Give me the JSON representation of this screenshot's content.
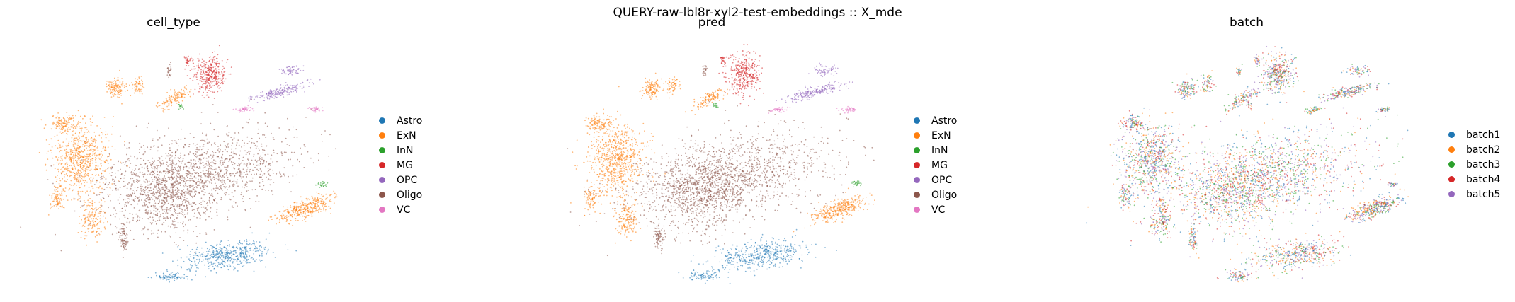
{
  "figure": {
    "suptitle": "QUERY-raw-lbl8r-xyl2-test-embeddings :: X_mde"
  },
  "chart_data": [
    {
      "type": "scatter",
      "title": "cell_type",
      "xlabel": "",
      "ylabel": "",
      "legend_title": "",
      "legend_placement": "right",
      "series": [
        {
          "name": "Astro",
          "color": "#1f77b4"
        },
        {
          "name": "ExN",
          "color": "#ff7f0e"
        },
        {
          "name": "InN",
          "color": "#2ca02c"
        },
        {
          "name": "MG",
          "color": "#d62728"
        },
        {
          "name": "OPC",
          "color": "#9467bd"
        },
        {
          "name": "Oligo",
          "color": "#8c564b"
        },
        {
          "name": "VC",
          "color": "#e377c2"
        }
      ]
    },
    {
      "type": "scatter",
      "title": "pred",
      "xlabel": "",
      "ylabel": "",
      "legend_title": "",
      "legend_placement": "right",
      "series": [
        {
          "name": "Astro",
          "color": "#1f77b4"
        },
        {
          "name": "ExN",
          "color": "#ff7f0e"
        },
        {
          "name": "InN",
          "color": "#2ca02c"
        },
        {
          "name": "MG",
          "color": "#d62728"
        },
        {
          "name": "OPC",
          "color": "#9467bd"
        },
        {
          "name": "Oligo",
          "color": "#8c564b"
        },
        {
          "name": "VC",
          "color": "#e377c2"
        }
      ]
    },
    {
      "type": "scatter",
      "title": "batch",
      "xlabel": "",
      "ylabel": "",
      "legend_title": "",
      "legend_placement": "right",
      "series": [
        {
          "name": "batch1",
          "color": "#1f77b4"
        },
        {
          "name": "batch2",
          "color": "#ff7f0e"
        },
        {
          "name": "batch3",
          "color": "#2ca02c"
        },
        {
          "name": "batch4",
          "color": "#d62728"
        },
        {
          "name": "batch5",
          "color": "#9467bd"
        }
      ]
    }
  ]
}
